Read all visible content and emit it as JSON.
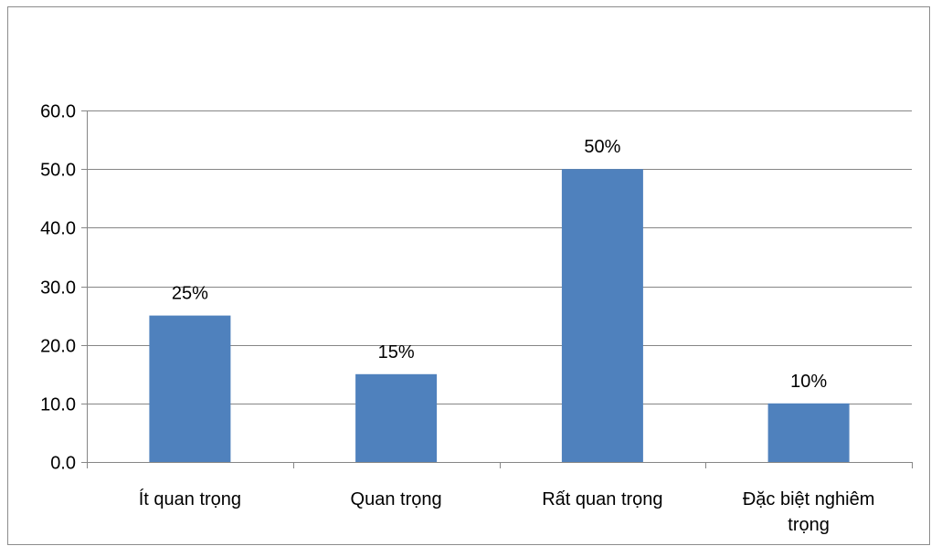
{
  "chart_data": {
    "type": "bar",
    "categories": [
      "Ít quan trọng",
      "Quan trọng",
      "Rất quan trọng",
      "Đặc biệt nghiêm trọng"
    ],
    "category_lines": [
      [
        "Ít quan trọng"
      ],
      [
        "Quan trọng"
      ],
      [
        "Rất quan trọng"
      ],
      [
        "Đặc biệt nghiêm",
        "trọng"
      ]
    ],
    "values": [
      25,
      15,
      50,
      10
    ],
    "data_labels": [
      "25%",
      "15%",
      "50%",
      "10%"
    ],
    "y_ticks": [
      "0.0",
      "10.0",
      "20.0",
      "30.0",
      "40.0",
      "50.0",
      "60.0"
    ],
    "ylim": [
      0,
      60
    ],
    "y_step": 10,
    "grid": true,
    "legend": false,
    "colors": {
      "bar": "#4f81bd",
      "grid": "#868686",
      "axis": "#868686",
      "frame": "#8c8c8c"
    }
  }
}
